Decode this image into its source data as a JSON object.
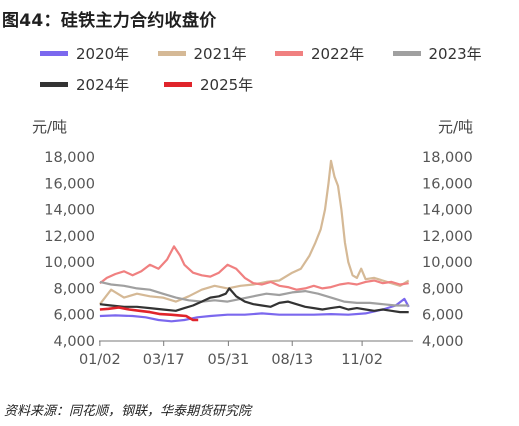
{
  "title": "图44：硅铁主力合约收盘价",
  "source": "资料来源：同花顺，钢联，华泰期货研究院",
  "chart_data": {
    "type": "line",
    "title": "图44：硅铁主力合约收盘价",
    "y_unit_left": "元/吨",
    "y_unit_right": "元/吨",
    "ylim": [
      4000,
      18000
    ],
    "y_ticks": [
      "4,000",
      "6,000",
      "8,000",
      "10,000",
      "12,000",
      "14,000",
      "16,000",
      "18,000"
    ],
    "x_ticks": [
      "01/02",
      "03/17",
      "05/31",
      "08/13",
      "11/02"
    ],
    "x_domain_days": [
      1,
      365
    ],
    "x_tick_days": [
      2,
      76,
      151,
      225,
      306
    ],
    "legend_placement": "top",
    "grid": false,
    "series": [
      {
        "name": "2020年",
        "color": "#7b68ee",
        "x": [
          2,
          20,
          40,
          55,
          70,
          85,
          100,
          115,
          130,
          150,
          170,
          190,
          210,
          230,
          250,
          270,
          290,
          310,
          330,
          345,
          355,
          360
        ],
        "values": [
          5900,
          5950,
          5900,
          5800,
          5600,
          5500,
          5600,
          5800,
          5900,
          6000,
          6000,
          6100,
          6000,
          6000,
          6000,
          6050,
          6000,
          6100,
          6400,
          6700,
          7200,
          6600
        ]
      },
      {
        "name": "2021年",
        "color": "#d5b996",
        "x": [
          2,
          15,
          30,
          45,
          60,
          75,
          90,
          105,
          120,
          135,
          150,
          165,
          180,
          195,
          210,
          225,
          235,
          245,
          252,
          258,
          263,
          267,
          270,
          274,
          278,
          282,
          286,
          290,
          295,
          300,
          305,
          310,
          320,
          335,
          350,
          360
        ],
        "values": [
          6800,
          7900,
          7300,
          7600,
          7400,
          7300,
          7000,
          7400,
          7900,
          8200,
          8000,
          8200,
          8300,
          8500,
          8600,
          9200,
          9500,
          10500,
          11500,
          12500,
          14000,
          16000,
          17700,
          16500,
          15800,
          14000,
          11500,
          10000,
          9000,
          8800,
          9500,
          8700,
          8800,
          8500,
          8200,
          8600
        ]
      },
      {
        "name": "2022年",
        "color": "#f08080",
        "x": [
          2,
          10,
          20,
          30,
          40,
          50,
          60,
          70,
          80,
          88,
          95,
          100,
          110,
          120,
          130,
          140,
          150,
          160,
          170,
          180,
          190,
          200,
          210,
          220,
          230,
          240,
          250,
          260,
          270,
          280,
          290,
          300,
          310,
          320,
          330,
          340,
          350,
          360
        ],
        "values": [
          8400,
          8800,
          9100,
          9300,
          9000,
          9300,
          9800,
          9500,
          10200,
          11200,
          10500,
          9800,
          9200,
          9000,
          8900,
          9200,
          9800,
          9500,
          8800,
          8400,
          8300,
          8500,
          8200,
          8100,
          7900,
          8000,
          8200,
          8000,
          8100,
          8300,
          8400,
          8300,
          8500,
          8600,
          8400,
          8500,
          8300,
          8400
        ]
      },
      {
        "name": "2023年",
        "color": "#a0a0a0",
        "x": [
          2,
          15,
          30,
          45,
          60,
          75,
          90,
          105,
          120,
          135,
          150,
          165,
          180,
          195,
          210,
          225,
          240,
          255,
          270,
          285,
          300,
          315,
          330,
          345,
          360
        ],
        "values": [
          8500,
          8300,
          8200,
          8000,
          7900,
          7600,
          7300,
          7100,
          7000,
          7100,
          7000,
          7200,
          7400,
          7600,
          7500,
          7700,
          7800,
          7600,
          7300,
          7000,
          6900,
          6900,
          6800,
          6700,
          6700
        ]
      },
      {
        "name": "2024年",
        "color": "#333333",
        "x": [
          2,
          15,
          30,
          45,
          60,
          75,
          90,
          100,
          110,
          120,
          130,
          140,
          148,
          152,
          160,
          170,
          180,
          190,
          200,
          210,
          220,
          230,
          240,
          250,
          260,
          270,
          280,
          290,
          300,
          310,
          320,
          330,
          340,
          350,
          360
        ],
        "values": [
          6800,
          6700,
          6600,
          6600,
          6500,
          6400,
          6300,
          6500,
          6700,
          7000,
          7300,
          7400,
          7600,
          8000,
          7400,
          7000,
          6800,
          6700,
          6600,
          6900,
          7000,
          6800,
          6600,
          6500,
          6400,
          6500,
          6600,
          6400,
          6500,
          6400,
          6300,
          6400,
          6300,
          6200,
          6200
        ]
      },
      {
        "name": "2025年",
        "color": "#e0242b",
        "x": [
          2,
          12,
          24,
          36,
          48,
          60,
          72,
          84,
          94,
          102,
          110,
          116
        ],
        "values": [
          6400,
          6450,
          6550,
          6400,
          6300,
          6200,
          6050,
          6000,
          5950,
          5900,
          5600,
          5600
        ]
      }
    ]
  }
}
